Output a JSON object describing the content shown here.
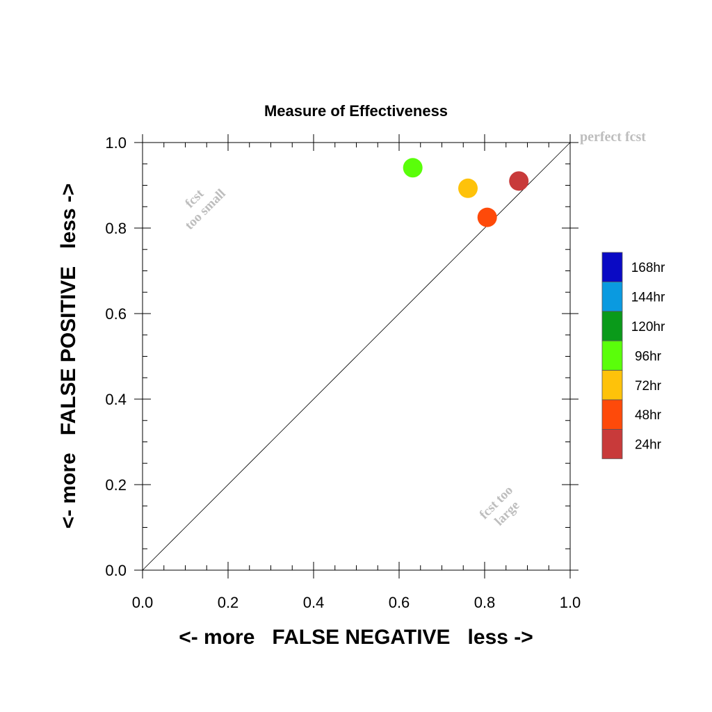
{
  "chart_data": {
    "type": "scatter",
    "title": "Measure of Effectiveness",
    "xlabel": "<- more   FALSE NEGATIVE   less ->",
    "ylabel": "<- more   FALSE POSITIVE   less ->",
    "xlim": [
      0.0,
      1.0
    ],
    "ylim": [
      0.0,
      1.0
    ],
    "xticks": [
      "0.0",
      "0.2",
      "0.4",
      "0.6",
      "0.8",
      "1.0"
    ],
    "yticks": [
      "0.0",
      "0.2",
      "0.4",
      "0.6",
      "0.8",
      "1.0"
    ],
    "grid": false,
    "diagonal": true,
    "annotations": {
      "perfect": "perfect fcst",
      "too_small": [
        "fcst",
        "too small"
      ],
      "too_large": [
        "fcst too",
        "large"
      ]
    },
    "legend": {
      "placement": "right",
      "entries": [
        {
          "label": "168hr",
          "color": "#0a0ac4"
        },
        {
          "label": "144hr",
          "color": "#0a9ae0"
        },
        {
          "label": "120hr",
          "color": "#0a9a1a"
        },
        {
          "label": "96hr",
          "color": "#5afe0a"
        },
        {
          "label": "72hr",
          "color": "#fec20a"
        },
        {
          "label": "48hr",
          "color": "#fe4a0a"
        },
        {
          "label": "24hr",
          "color": "#c83a3a"
        }
      ]
    },
    "points": [
      {
        "label": "96hr",
        "x": 0.632,
        "y": 0.941
      },
      {
        "label": "72hr",
        "x": 0.761,
        "y": 0.893
      },
      {
        "label": "48hr",
        "x": 0.806,
        "y": 0.825
      },
      {
        "label": "24hr",
        "x": 0.88,
        "y": 0.91
      }
    ]
  }
}
